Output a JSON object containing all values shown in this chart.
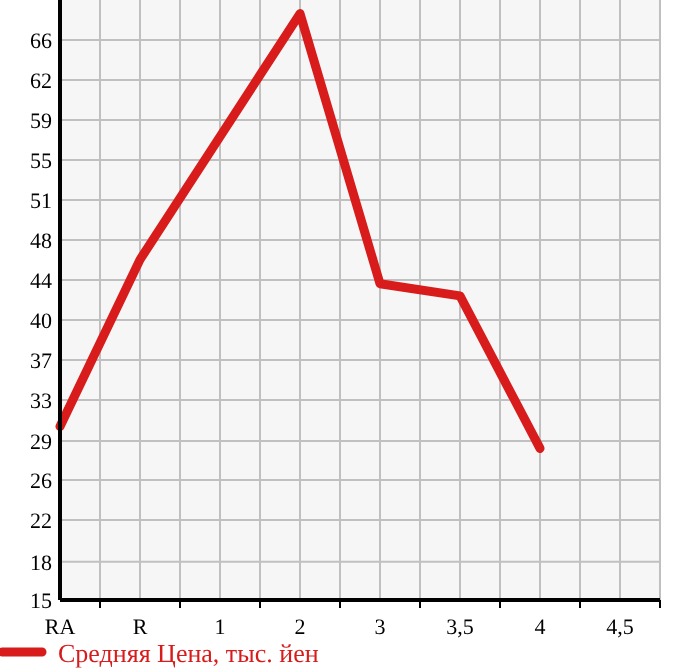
{
  "chart_data": {
    "type": "line",
    "categories": [
      "RA",
      "R",
      "1",
      "2",
      "3",
      "3,5",
      "4",
      "4,5"
    ],
    "series": [
      {
        "name": "Средняя Цена, тыс. йен",
        "color": "#d81c1c",
        "values": [
          30.8,
          46.0,
          57.2,
          68.4,
          43.8,
          42.7,
          28.8,
          null
        ]
      }
    ],
    "ylim": [
      15,
      69.64
    ],
    "yticks": [
      {
        "value": 15,
        "label": "15"
      },
      {
        "value": 18.49,
        "label": "18"
      },
      {
        "value": 22.29,
        "label": "22"
      },
      {
        "value": 25.93,
        "label": "26"
      },
      {
        "value": 29.49,
        "label": "29"
      },
      {
        "value": 33.21,
        "label": "33"
      },
      {
        "value": 36.86,
        "label": "37"
      },
      {
        "value": 40.5,
        "label": "40"
      },
      {
        "value": 44.14,
        "label": "44"
      },
      {
        "value": 47.79,
        "label": "48"
      },
      {
        "value": 51.43,
        "label": "51"
      },
      {
        "value": 55.07,
        "label": "55"
      },
      {
        "value": 58.71,
        "label": "59"
      },
      {
        "value": 62.36,
        "label": "62"
      },
      {
        "value": 66,
        "label": "66"
      }
    ],
    "grid": true,
    "legend": "bottom left",
    "marker": "none",
    "line_style": "solid"
  }
}
